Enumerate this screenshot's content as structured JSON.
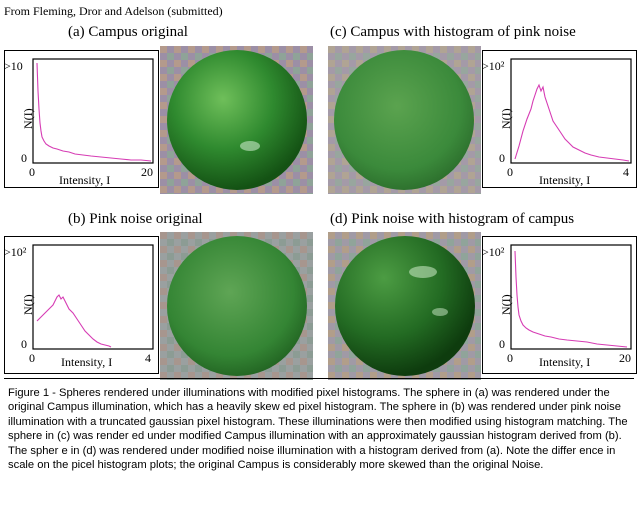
{
  "attribution": "From Fleming, Dror and Adelson (submitted)",
  "panels": [
    {
      "title": "(a)  Campus original",
      "xlabel": "Intensity, I",
      "ylabel": "N(I)",
      "ymax": ">10",
      "x0": "0",
      "xmax": "20",
      "y0": "0"
    },
    {
      "title": "(c) Campus with histogram of pink noise",
      "xlabel": "Intensity, I",
      "ylabel": "N(I)",
      "ymax": ">10²",
      "x0": "0",
      "xmax": "4",
      "y0": "0"
    },
    {
      "title": "(b)  Pink noise original",
      "xlabel": "Intensity, I",
      "ylabel": "N(I)",
      "ymax": ">10²",
      "x0": "0",
      "xmax": "4",
      "y0": "0"
    },
    {
      "title": "(d)  Pink noise with histogram of campus",
      "xlabel": "Intensity, I",
      "ylabel": "N(I)",
      "ymax": ">10²",
      "x0": "0",
      "xmax": "20",
      "y0": "0"
    }
  ],
  "caption": "Figure 1 - Spheres rendered under illuminations with modified pixel histograms.  The sphere in (a) was rendered under the original Campus illumination, which has a heavily skew    ed pixel histogram.  The sphere in (b) was rendered under pink noise illumination with a truncated gaussian pixel histogram.  These illuminations were then modified using histogram matching.  The sphere in (c) was render   ed under modified Campus illumination with an approximately gaussian histogram derived from (b).  The spher   e in (d) was rendered under modified noise illumination with a histogram derived from (a).  Note the differ     ence in scale on the picel histogram plots; the original Campus is considerably more skewed than the original Noise.",
  "colors": {
    "curve": "#d63cb4",
    "sphere": "#2f8a2f",
    "background": "#ffffff"
  }
}
